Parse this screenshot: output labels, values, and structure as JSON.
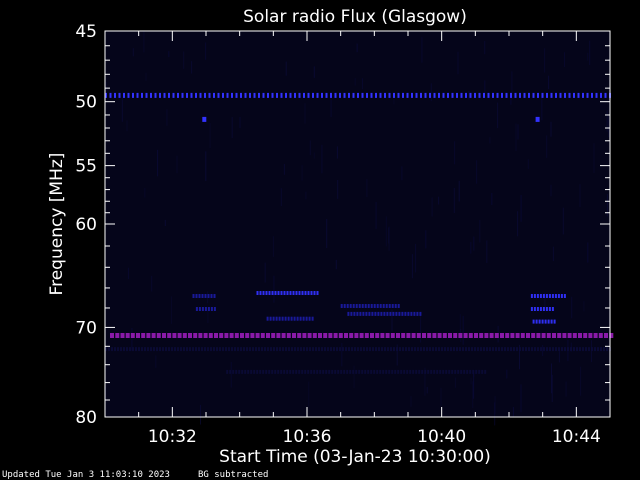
{
  "chart_data": {
    "type": "heatmap",
    "title": "Solar radio Flux (Glasgow)",
    "xlabel": "Start Time (03-Jan-23 10:30:00)",
    "ylabel": "Frequency [MHz]",
    "x_start": "10:30:00",
    "xlim_minutes": [
      0,
      15
    ],
    "x_ticks": [
      {
        "minutes": 2,
        "label": "10:32"
      },
      {
        "minutes": 6,
        "label": "10:36"
      },
      {
        "minutes": 10,
        "label": "10:40"
      },
      {
        "minutes": 14,
        "label": "10:44"
      }
    ],
    "y_scale": "log-reversed",
    "ylim": [
      45,
      80
    ],
    "y_ticks": [
      {
        "value": 45,
        "label": "45"
      },
      {
        "value": 50,
        "label": "50"
      },
      {
        "value": 55,
        "label": "55"
      },
      {
        "value": 60,
        "label": "60"
      },
      {
        "value": 70,
        "label": "70"
      },
      {
        "value": 80,
        "label": "80"
      }
    ],
    "colors": {
      "background": "#05051a",
      "noise": "#0b0b3a",
      "medium": "#1a1aa0",
      "strong": "#3232ff",
      "purple": "#8a1aa8",
      "axes": "#ffffff"
    },
    "features": [
      {
        "kind": "dotted-line",
        "freq": 49.5,
        "t_start": 0.0,
        "t_end": 15.0,
        "color": "strong"
      },
      {
        "kind": "spot",
        "freq": 51.3,
        "t": 2.95,
        "color": "strong"
      },
      {
        "kind": "spot",
        "freq": 51.3,
        "t": 12.85,
        "color": "strong"
      },
      {
        "kind": "dotted-line",
        "freq": 70.8,
        "t_start": 0.15,
        "t_end": 15.0,
        "color": "purple"
      },
      {
        "kind": "band",
        "freq": 66.5,
        "t_start": 4.5,
        "t_end": 6.3,
        "color": "strong"
      },
      {
        "kind": "band",
        "freq": 69.1,
        "t_start": 4.8,
        "t_end": 6.2,
        "color": "medium"
      },
      {
        "kind": "band",
        "freq": 67.8,
        "t_start": 7.0,
        "t_end": 8.7,
        "color": "medium"
      },
      {
        "kind": "band",
        "freq": 68.6,
        "t_start": 7.2,
        "t_end": 9.4,
        "color": "medium"
      },
      {
        "kind": "band",
        "freq": 66.8,
        "t_start": 12.65,
        "t_end": 13.65,
        "color": "strong"
      },
      {
        "kind": "band",
        "freq": 68.1,
        "t_start": 12.65,
        "t_end": 13.3,
        "color": "strong"
      },
      {
        "kind": "band",
        "freq": 69.4,
        "t_start": 12.7,
        "t_end": 13.4,
        "color": "strong"
      },
      {
        "kind": "band",
        "freq": 66.8,
        "t_start": 2.6,
        "t_end": 3.3,
        "color": "medium"
      },
      {
        "kind": "band",
        "freq": 68.1,
        "t_start": 2.7,
        "t_end": 3.3,
        "color": "medium"
      },
      {
        "kind": "band",
        "freq": 74.8,
        "t_start": 3.6,
        "t_end": 11.3,
        "color": "noise"
      },
      {
        "kind": "band",
        "freq": 72.3,
        "t_start": 0.0,
        "t_end": 15.0,
        "color": "noise"
      }
    ]
  },
  "footer": {
    "updated": "Updated Tue Jan  3 11:03:10 2023",
    "note": "BG subtracted"
  }
}
